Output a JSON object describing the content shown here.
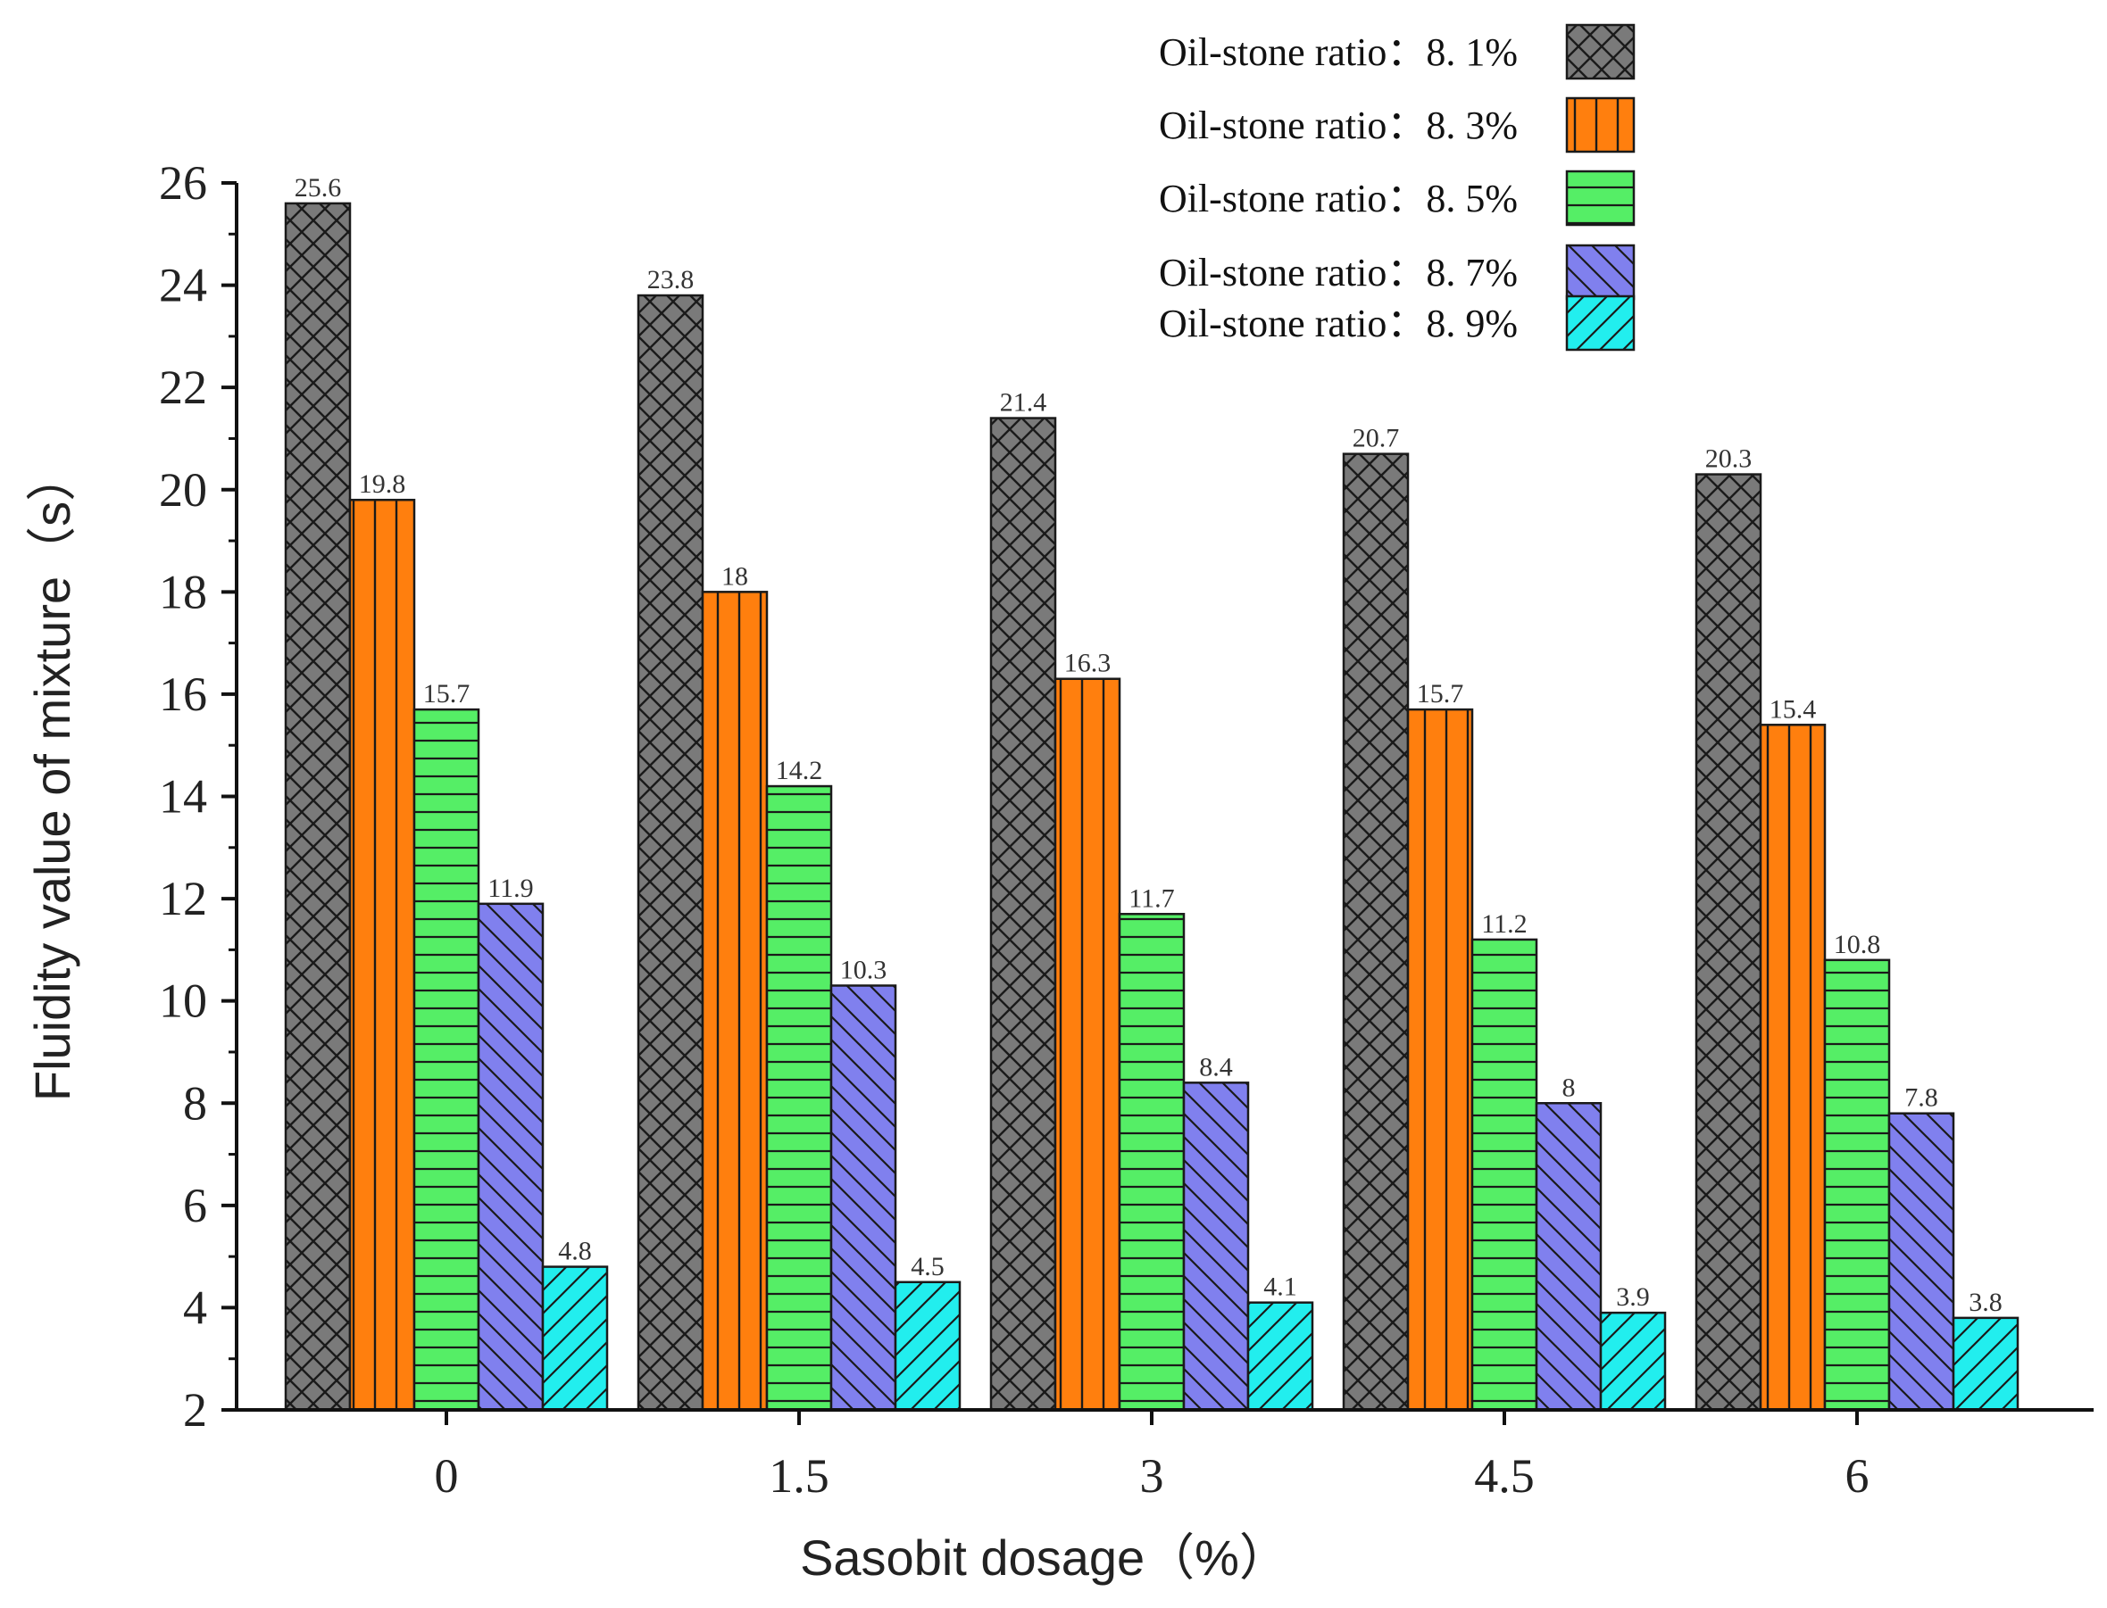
{
  "chart_data": {
    "type": "bar",
    "title": "",
    "xlabel": "Sasobit dosage（%）",
    "ylabel": "Fluidity value of mixture（s）",
    "categories": [
      "0",
      "1.5",
      "3",
      "4.5",
      "6"
    ],
    "ylim": [
      2,
      26
    ],
    "yticks": [
      "2",
      "4",
      "6",
      "8",
      "10",
      "12",
      "14",
      "16",
      "18",
      "20",
      "22",
      "24",
      "26"
    ],
    "legend_position": "top-right",
    "series": [
      {
        "name": "Oil-stone ratio：8. 1%",
        "color": "#7a7a7a",
        "pattern": "crosshatch",
        "values": [
          25.6,
          23.8,
          21.4,
          20.7,
          20.3
        ],
        "labels": [
          "25.6",
          "23.8",
          "21.4",
          "20.7",
          "20.3"
        ]
      },
      {
        "name": "Oil-stone ratio：8. 3%",
        "color": "#ff7f0e",
        "pattern": "vertical",
        "values": [
          19.8,
          18,
          16.3,
          15.7,
          15.4
        ],
        "labels": [
          "19.8",
          "18",
          "16.3",
          "15.7",
          "15.4"
        ]
      },
      {
        "name": "Oil-stone ratio：8. 5%",
        "color": "#55ee66",
        "pattern": "horizontal",
        "values": [
          15.7,
          14.2,
          11.7,
          11.2,
          10.8
        ],
        "labels": [
          "15.7",
          "14.2",
          "11.7",
          "11.2",
          "10.8"
        ]
      },
      {
        "name": "Oil-stone ratio：8. 7%",
        "color": "#8080ee",
        "pattern": "backslash",
        "values": [
          11.9,
          10.3,
          8.4,
          8,
          7.8
        ],
        "labels": [
          "11.9",
          "10.3",
          "8.4",
          "8",
          "7.8"
        ]
      },
      {
        "name": "Oil-stone ratio：8. 9%",
        "color": "#22eeee",
        "pattern": "slash",
        "values": [
          4.8,
          4.5,
          4.1,
          3.9,
          3.8
        ],
        "labels": [
          "4.8",
          "4.5",
          "4.1",
          "3.9",
          "3.8"
        ]
      }
    ]
  }
}
